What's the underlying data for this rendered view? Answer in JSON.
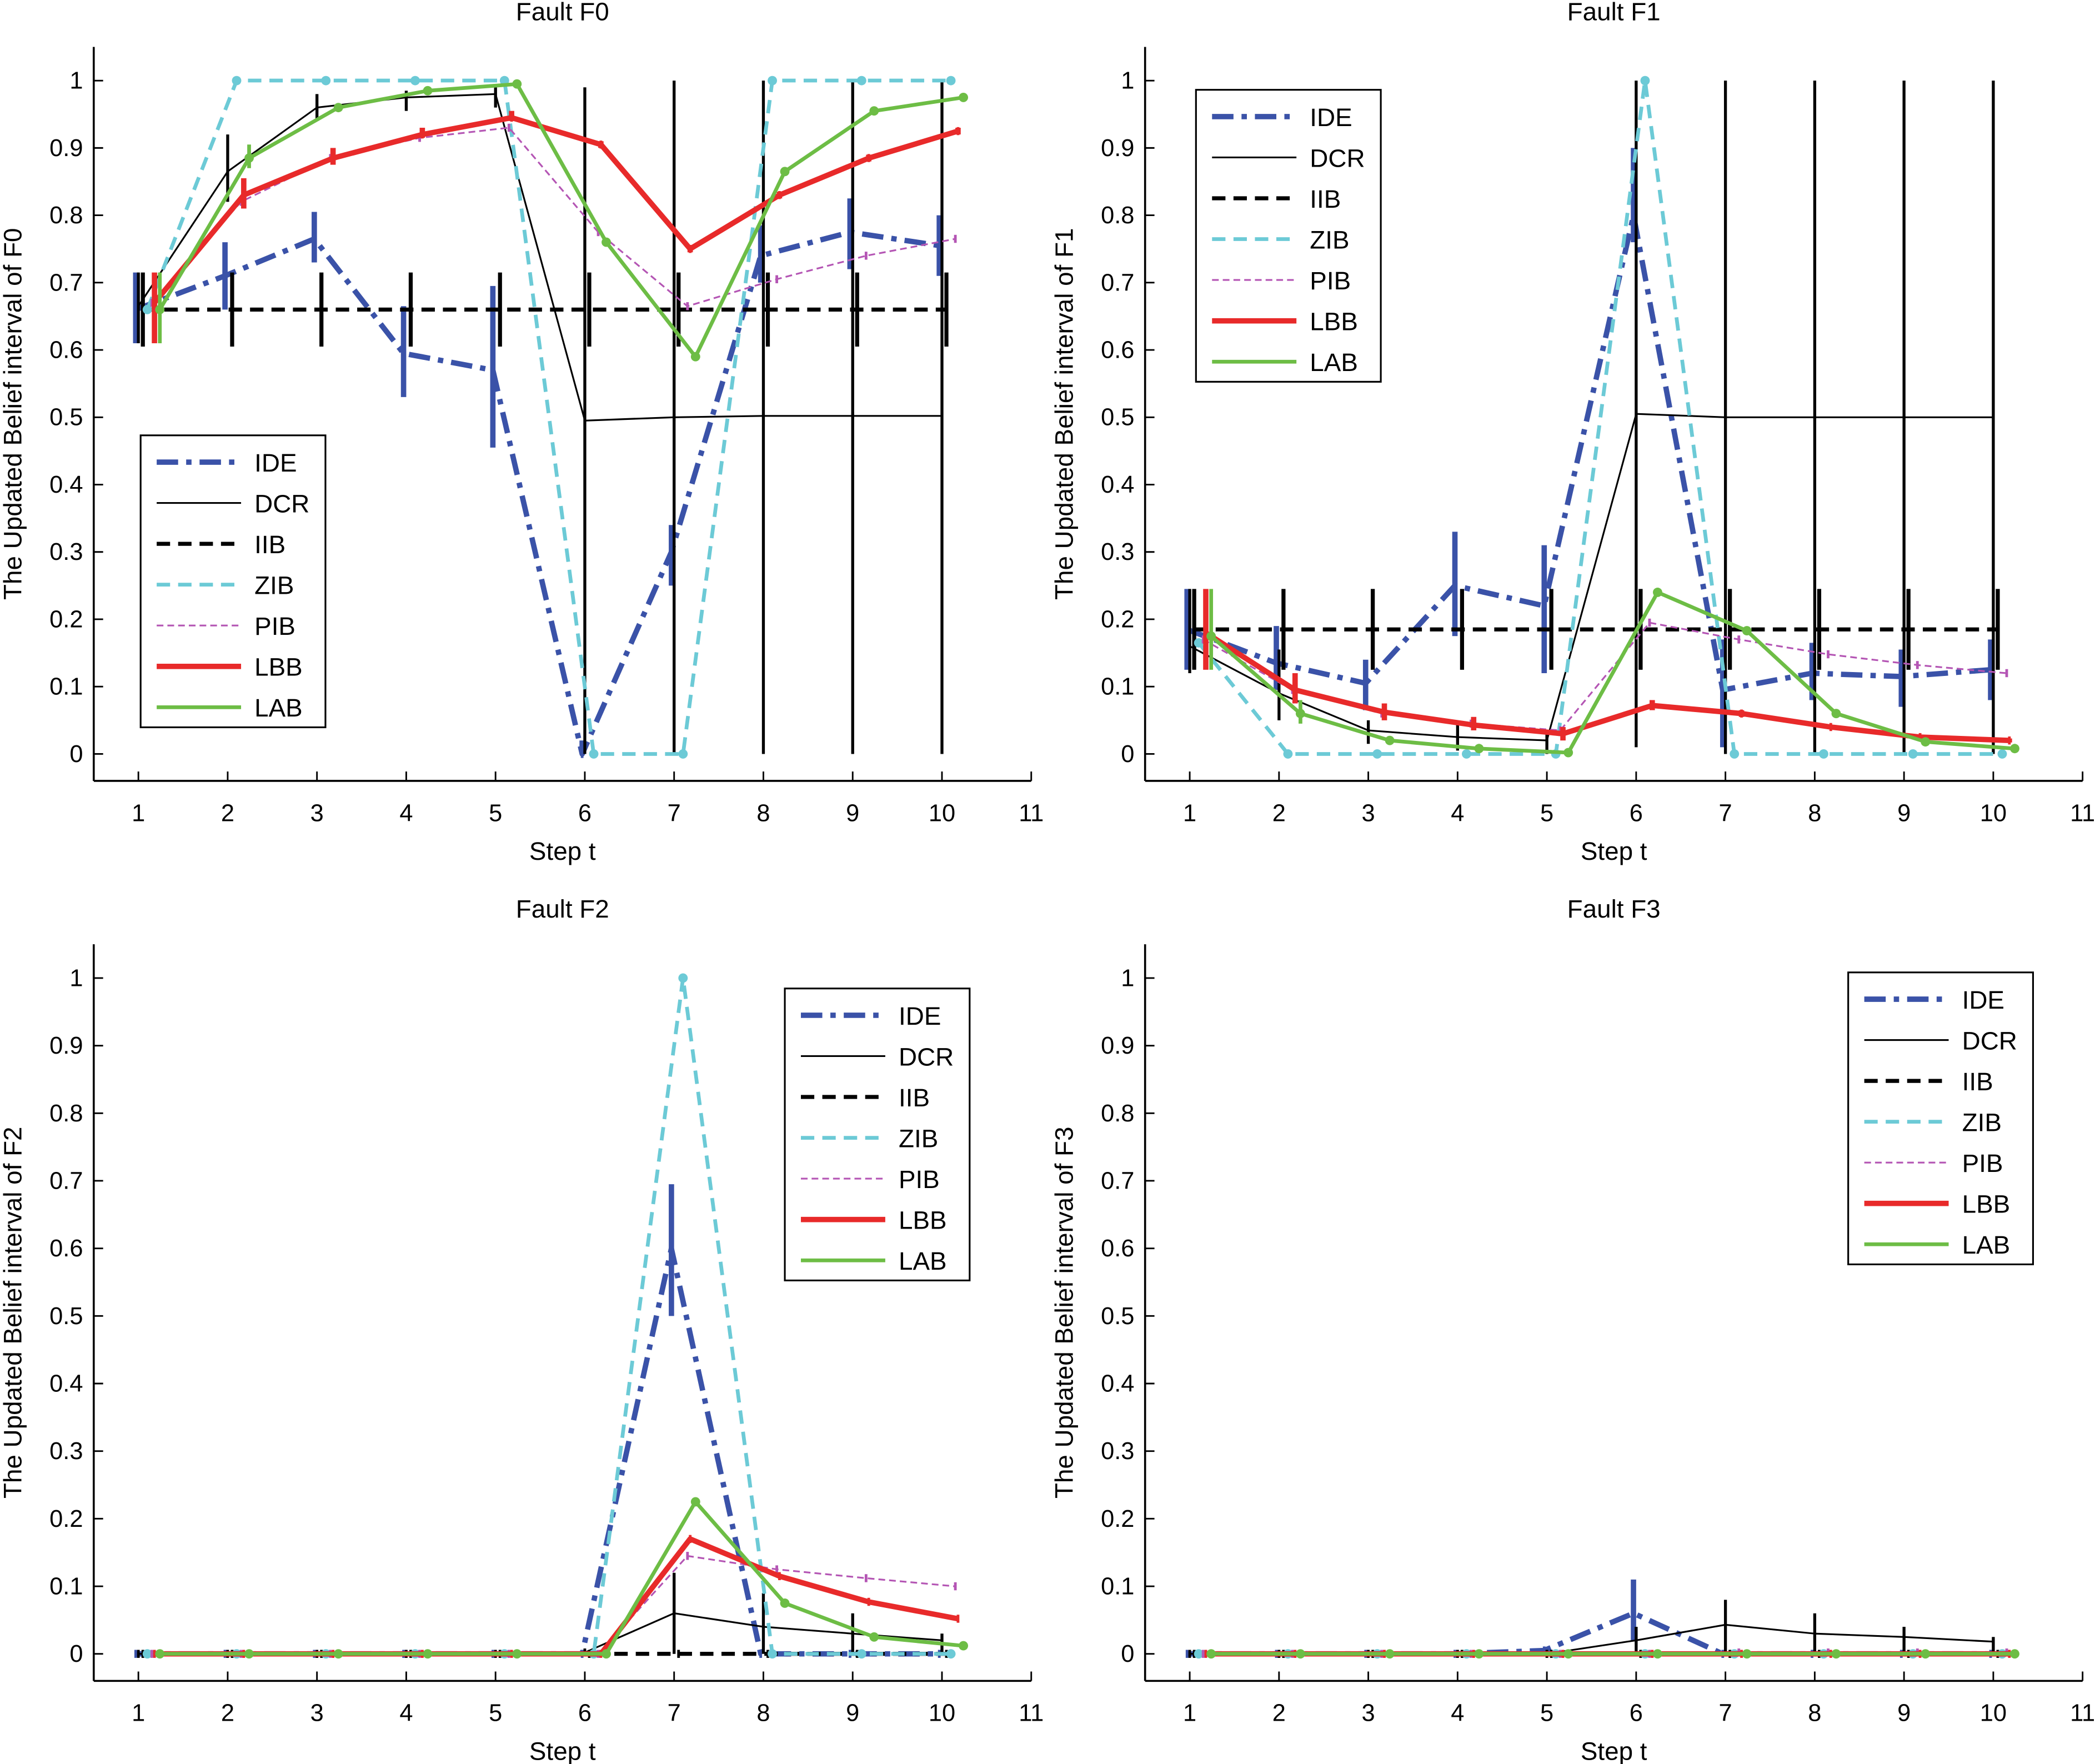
{
  "chart_data": [
    {
      "type": "line",
      "title": "Fault    F0",
      "xlabel": "Step t",
      "ylabel": "The Updated Belief interval of F0",
      "xlim": [
        0.5,
        11
      ],
      "ylim": [
        -0.04,
        1.05
      ],
      "xticks": [
        1,
        2,
        3,
        4,
        5,
        6,
        7,
        8,
        9,
        10,
        11
      ],
      "yticks": [
        0,
        0.1,
        0.2,
        0.3,
        0.4,
        0.5,
        0.6,
        0.7,
        0.8,
        0.9,
        1
      ],
      "grid": false,
      "legend_position": "bottom-left",
      "x": [
        1,
        2,
        3,
        4,
        5,
        6,
        7,
        8,
        9,
        10
      ],
      "series": [
        {
          "name": "IDE",
          "values": [
            0.66,
            0.71,
            0.765,
            0.595,
            0.57,
            0,
            0.3,
            0.74,
            0.775,
            0.755
          ],
          "intervals": [
            [
              0.61,
              0.715
            ],
            [
              0.66,
              0.76
            ],
            [
              0.73,
              0.805
            ],
            [
              0.53,
              0.665
            ],
            [
              0.455,
              0.695
            ],
            [
              0,
              0.02
            ],
            [
              0.25,
              0.34
            ],
            [
              0.7,
              0.785
            ],
            [
              0.72,
              0.825
            ],
            [
              0.71,
              0.8
            ]
          ]
        },
        {
          "name": "DCR",
          "values": [
            0.665,
            0.865,
            0.96,
            0.975,
            0.98,
            0.495,
            0.5,
            0.502,
            0.502,
            0.502
          ],
          "intervals": [
            [
              0.61,
              0.715
            ],
            [
              0.82,
              0.92
            ],
            [
              0.94,
              0.98
            ],
            [
              0.955,
              0.985
            ],
            [
              0.96,
              0.99
            ],
            [
              0,
              0.99
            ],
            [
              0,
              1
            ],
            [
              0,
              1
            ],
            [
              0,
              1
            ],
            [
              0,
              1
            ]
          ]
        },
        {
          "name": "IIB",
          "values": [
            0.66,
            0.66,
            0.66,
            0.66,
            0.66,
            0.66,
            0.66,
            0.66,
            0.66,
            0.66
          ],
          "intervals": [
            [
              0.605,
              0.715
            ],
            [
              0.605,
              0.715
            ],
            [
              0.605,
              0.715
            ],
            [
              0.605,
              0.715
            ],
            [
              0.605,
              0.715
            ],
            [
              0.605,
              0.715
            ],
            [
              0.605,
              0.715
            ],
            [
              0.605,
              0.715
            ],
            [
              0.605,
              0.715
            ],
            [
              0.605,
              0.715
            ]
          ]
        },
        {
          "name": "ZIB",
          "values": [
            0.66,
            1,
            1,
            1,
            1,
            0,
            0,
            1,
            1,
            1
          ]
        },
        {
          "name": "PIB",
          "values": [
            0.67,
            0.82,
            0.885,
            0.915,
            0.93,
            0.775,
            0.665,
            0.705,
            0.74,
            0.765
          ]
        },
        {
          "name": "LBB",
          "values": [
            0.67,
            0.83,
            0.885,
            0.92,
            0.945,
            0.905,
            0.75,
            0.83,
            0.885,
            0.925
          ],
          "intervals": [
            [
              0.61,
              0.715
            ],
            [
              0.81,
              0.855
            ],
            [
              0.875,
              0.9
            ],
            [
              0.915,
              0.93
            ],
            [
              0.94,
              0.955
            ],
            [
              0.9,
              0.91
            ],
            [
              0.745,
              0.755
            ],
            [
              0.825,
              0.835
            ],
            [
              0.88,
              0.89
            ],
            [
              0.92,
              0.93
            ]
          ]
        },
        {
          "name": "LAB",
          "values": [
            0.66,
            0.885,
            0.96,
            0.985,
            0.995,
            0.76,
            0.59,
            0.865,
            0.955,
            0.975
          ],
          "intervals": [
            [
              0.61,
              0.715
            ],
            [
              0.87,
              0.905
            ],
            [
              0.955,
              0.965
            ],
            [
              0.98,
              0.99
            ],
            [
              0.99,
              1
            ],
            [
              0.755,
              0.765
            ],
            [
              0.585,
              0.595
            ],
            [
              0.86,
              0.87
            ],
            [
              0.95,
              0.96
            ],
            [
              0.97,
              0.98
            ]
          ]
        }
      ]
    },
    {
      "type": "line",
      "title": "Fault    F1",
      "xlabel": "Step t",
      "ylabel": "The Updated Belief interval of F1",
      "xlim": [
        0.5,
        11
      ],
      "ylim": [
        -0.04,
        1.05
      ],
      "xticks": [
        1,
        2,
        3,
        4,
        5,
        6,
        7,
        8,
        9,
        10,
        11
      ],
      "yticks": [
        0,
        0.1,
        0.2,
        0.3,
        0.4,
        0.5,
        0.6,
        0.7,
        0.8,
        0.9,
        1
      ],
      "grid": false,
      "legend_position": "top-left",
      "x": [
        1,
        2,
        3,
        4,
        5,
        6,
        7,
        8,
        9,
        10
      ],
      "series": [
        {
          "name": "IDE",
          "values": [
            0.185,
            0.135,
            0.105,
            0.25,
            0.22,
            0.8,
            0.095,
            0.12,
            0.115,
            0.125
          ],
          "intervals": [
            [
              0.125,
              0.245
            ],
            [
              0.095,
              0.19
            ],
            [
              0.065,
              0.14
            ],
            [
              0.175,
              0.33
            ],
            [
              0.12,
              0.31
            ],
            [
              0.76,
              0.9
            ],
            [
              0.01,
              0.17
            ],
            [
              0.08,
              0.165
            ],
            [
              0.07,
              0.155
            ],
            [
              0.08,
              0.17
            ]
          ]
        },
        {
          "name": "DCR",
          "values": [
            0.16,
            0.09,
            0.035,
            0.025,
            0.02,
            0.505,
            0.5,
            0.5,
            0.5,
            0.5
          ],
          "intervals": [
            [
              0.12,
              0.245
            ],
            [
              0.05,
              0.155
            ],
            [
              0.015,
              0.05
            ],
            [
              0.005,
              0.045
            ],
            [
              0,
              0.03
            ],
            [
              0.01,
              1
            ],
            [
              0,
              1
            ],
            [
              0,
              1
            ],
            [
              0,
              1
            ],
            [
              0,
              1
            ]
          ]
        },
        {
          "name": "IIB",
          "values": [
            0.185,
            0.185,
            0.185,
            0.185,
            0.185,
            0.185,
            0.185,
            0.185,
            0.185,
            0.185
          ],
          "intervals": [
            [
              0.125,
              0.245
            ],
            [
              0.125,
              0.245
            ],
            [
              0.125,
              0.245
            ],
            [
              0.125,
              0.245
            ],
            [
              0.125,
              0.245
            ],
            [
              0.125,
              0.245
            ],
            [
              0.125,
              0.245
            ],
            [
              0.125,
              0.245
            ],
            [
              0.125,
              0.245
            ],
            [
              0.125,
              0.245
            ]
          ]
        },
        {
          "name": "ZIB",
          "values": [
            0.165,
            0,
            0,
            0,
            0,
            1,
            0,
            0,
            0,
            0
          ]
        },
        {
          "name": "PIB",
          "values": [
            0.17,
            0.095,
            0.06,
            0.045,
            0.035,
            0.195,
            0.17,
            0.148,
            0.132,
            0.12
          ]
        },
        {
          "name": "LBB",
          "values": [
            0.18,
            0.095,
            0.062,
            0.043,
            0.03,
            0.072,
            0.06,
            0.04,
            0.025,
            0.02
          ],
          "intervals": [
            [
              0.125,
              0.245
            ],
            [
              0.075,
              0.12
            ],
            [
              0.05,
              0.075
            ],
            [
              0.035,
              0.055
            ],
            [
              0.02,
              0.04
            ],
            [
              0.065,
              0.08
            ],
            [
              0.055,
              0.065
            ],
            [
              0.037,
              0.043
            ],
            [
              0.022,
              0.028
            ],
            [
              0.017,
              0.023
            ]
          ]
        },
        {
          "name": "LAB",
          "values": [
            0.175,
            0.06,
            0.02,
            0.008,
            0.002,
            0.24,
            0.183,
            0.06,
            0.018,
            0.008
          ],
          "intervals": [
            [
              0.125,
              0.245
            ],
            [
              0.045,
              0.08
            ],
            [
              0.015,
              0.025
            ],
            [
              0.005,
              0.011
            ],
            [
              0,
              0.005
            ],
            [
              0.235,
              0.245
            ],
            [
              0.178,
              0.188
            ],
            [
              0.055,
              0.065
            ],
            [
              0.013,
              0.023
            ],
            [
              0.003,
              0.013
            ]
          ]
        }
      ]
    },
    {
      "type": "line",
      "title": "Fault    F2",
      "xlabel": "Step t",
      "ylabel": "The Updated Belief interval of F2",
      "xlim": [
        0.5,
        11
      ],
      "ylim": [
        -0.04,
        1.05
      ],
      "xticks": [
        1,
        2,
        3,
        4,
        5,
        6,
        7,
        8,
        9,
        10,
        11
      ],
      "yticks": [
        0,
        0.1,
        0.2,
        0.3,
        0.4,
        0.5,
        0.6,
        0.7,
        0.8,
        0.9,
        1
      ],
      "grid": false,
      "legend_position": "top-right",
      "x": [
        1,
        2,
        3,
        4,
        5,
        6,
        7,
        8,
        9,
        10
      ],
      "series": [
        {
          "name": "IDE",
          "values": [
            0,
            0,
            0,
            0,
            0,
            0,
            0.6,
            0,
            0,
            0
          ],
          "intervals": [
            null,
            null,
            null,
            null,
            null,
            null,
            [
              0.5,
              0.695
            ],
            null,
            null,
            null
          ]
        },
        {
          "name": "DCR",
          "values": [
            0,
            0,
            0,
            0,
            0,
            0.002,
            0.06,
            0.04,
            0.03,
            0.02
          ],
          "intervals": [
            null,
            null,
            null,
            null,
            null,
            null,
            [
              0,
              0.12
            ],
            [
              0,
              0.09
            ],
            [
              0,
              0.06
            ],
            [
              0,
              0.03
            ]
          ]
        },
        {
          "name": "IIB",
          "values": [
            0,
            0,
            0,
            0,
            0,
            0,
            0,
            0,
            0,
            0
          ]
        },
        {
          "name": "ZIB",
          "values": [
            0,
            0,
            0,
            0,
            0,
            0,
            1,
            0,
            0,
            0
          ]
        },
        {
          "name": "PIB",
          "values": [
            0,
            0,
            0,
            0,
            0,
            0,
            0.145,
            0.125,
            0.112,
            0.1
          ]
        },
        {
          "name": "LBB",
          "values": [
            0,
            0,
            0,
            0,
            0,
            0,
            0.17,
            0.115,
            0.077,
            0.052
          ]
        },
        {
          "name": "LAB",
          "values": [
            0,
            0,
            0,
            0,
            0,
            0,
            0.225,
            0.075,
            0.025,
            0.012
          ]
        }
      ]
    },
    {
      "type": "line",
      "title": "Fault    F3",
      "xlabel": "Step t",
      "ylabel": "The Updated Belief interval of F3",
      "xlim": [
        0.5,
        11
      ],
      "ylim": [
        -0.04,
        1.05
      ],
      "xticks": [
        1,
        2,
        3,
        4,
        5,
        6,
        7,
        8,
        9,
        10,
        11
      ],
      "yticks": [
        0,
        0.1,
        0.2,
        0.3,
        0.4,
        0.5,
        0.6,
        0.7,
        0.8,
        0.9,
        1
      ],
      "grid": false,
      "legend_position": "top-right",
      "x": [
        1,
        2,
        3,
        4,
        5,
        6,
        7,
        8,
        9,
        10
      ],
      "series": [
        {
          "name": "IDE",
          "values": [
            0,
            0,
            0,
            0,
            0.005,
            0.06,
            0,
            0,
            0,
            0
          ],
          "intervals": [
            null,
            null,
            null,
            null,
            null,
            [
              0.02,
              0.11
            ],
            null,
            null,
            null,
            null
          ]
        },
        {
          "name": "DCR",
          "values": [
            0,
            0,
            0,
            0,
            0,
            0.02,
            0.043,
            0.03,
            0.025,
            0.018
          ],
          "intervals": [
            null,
            null,
            null,
            null,
            null,
            [
              0,
              0.04
            ],
            [
              0,
              0.08
            ],
            [
              0,
              0.06
            ],
            [
              0,
              0.04
            ],
            [
              0,
              0.025
            ]
          ]
        },
        {
          "name": "IIB",
          "values": [
            0,
            0,
            0,
            0,
            0,
            0,
            0,
            0,
            0,
            0
          ]
        },
        {
          "name": "ZIB",
          "values": [
            0,
            0,
            0,
            0,
            0,
            0,
            0,
            0,
            0,
            0
          ]
        },
        {
          "name": "PIB",
          "values": [
            0,
            0,
            0,
            0,
            0,
            0,
            0.002,
            0.002,
            0.002,
            0.002
          ]
        },
        {
          "name": "LBB",
          "values": [
            0,
            0,
            0,
            0,
            0,
            0,
            0,
            0,
            0,
            0
          ]
        },
        {
          "name": "LAB",
          "values": [
            0,
            0,
            0,
            0,
            0,
            0,
            0,
            0,
            0,
            0
          ]
        }
      ]
    }
  ],
  "series_colors": {
    "IDE": "#3a52a8",
    "DCR": "#000000",
    "IIB": "#000000",
    "ZIB": "#6ccad6",
    "PIB": "#b455b4",
    "LBB": "#e82a2a",
    "LAB": "#6dbd45"
  }
}
